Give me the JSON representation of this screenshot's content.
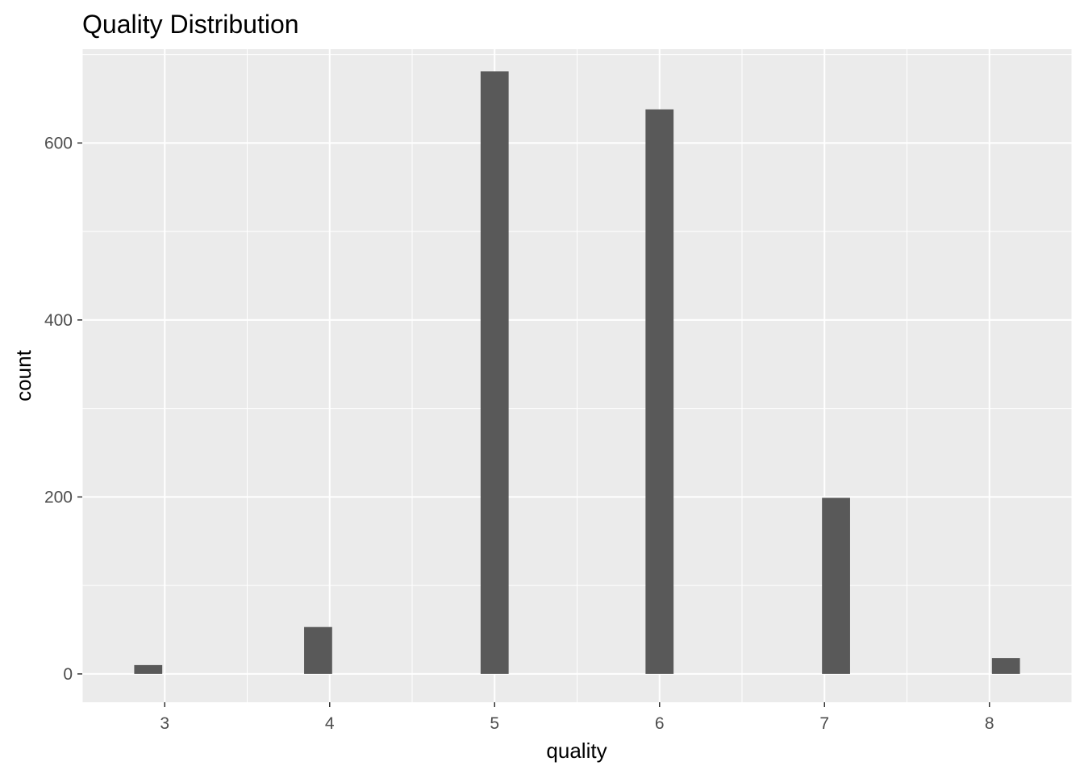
{
  "chart_data": {
    "type": "bar",
    "title": "Quality Distribution",
    "xlabel": "quality",
    "ylabel": "count",
    "x": [
      2.9,
      3.93,
      5,
      6,
      7.07,
      8.1
    ],
    "values": [
      10,
      53,
      681,
      638,
      199,
      18
    ],
    "bar_width": 0.17,
    "xlim": [
      2.5,
      8.5
    ],
    "ylim": [
      -32,
      706
    ],
    "x_ticks": [
      3,
      4,
      5,
      6,
      7,
      8
    ],
    "x_tick_labels": [
      "3",
      "4",
      "5",
      "6",
      "7",
      "8"
    ],
    "y_ticks": [
      0,
      200,
      400,
      600
    ],
    "y_tick_labels": [
      "0",
      "200",
      "400",
      "600"
    ],
    "grid": true,
    "legend": "none",
    "colors": {
      "panel_background": "#ebebeb",
      "grid": "#ffffff",
      "bar_fill": "#595959",
      "tick_label": "#4d4d4d",
      "tick_mark": "#333333"
    }
  }
}
